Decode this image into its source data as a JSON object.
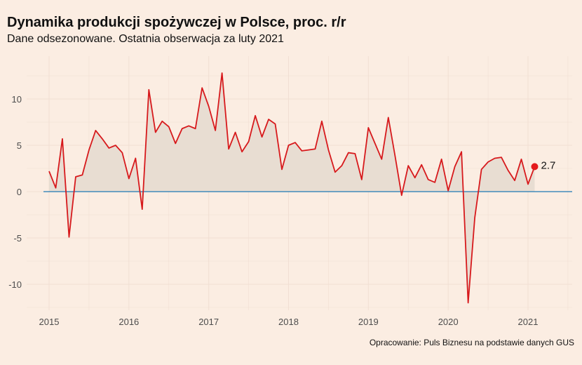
{
  "title": "Dynamika produkcji spożywczej w Polsce, proc. r/r",
  "subtitle": "Dane odsezonowane. Ostatnia obserwacja za luty 2021",
  "caption": "Opracowanie: Puls Biznesu na podstawie danych GUS",
  "chart_data": {
    "type": "area",
    "title": "Dynamika produkcji spożywczej w Polsce, proc. r/r",
    "subtitle": "Dane odsezonowane. Ostatnia obserwacja za luty 2021",
    "xlabel": "",
    "ylabel": "",
    "x_ticks": [
      "2015",
      "2016",
      "2017",
      "2018",
      "2019",
      "2020",
      "2021"
    ],
    "y_ticks": [
      10,
      5,
      0,
      -5,
      -10
    ],
    "xlim": [
      "2014-12",
      "2021-08"
    ],
    "ylim": [
      -12.5,
      13.5
    ],
    "grid": true,
    "legend": "none",
    "line_color": "#d7191c",
    "fill_color": "#e8ddd2",
    "zero_line_color": "#1f78b4",
    "last_value_label": "2.7",
    "series": [
      {
        "x": [
          "2015-01",
          "2015-02",
          "2015-03",
          "2015-04",
          "2015-05",
          "2015-06",
          "2015-07",
          "2015-08",
          "2015-09",
          "2015-10",
          "2015-11",
          "2015-12",
          "2016-01",
          "2016-02",
          "2016-03",
          "2016-04",
          "2016-05",
          "2016-06",
          "2016-07",
          "2016-08",
          "2016-09",
          "2016-10",
          "2016-11",
          "2016-12",
          "2017-01",
          "2017-02",
          "2017-03",
          "2017-04",
          "2017-05",
          "2017-06",
          "2017-07",
          "2017-08",
          "2017-09",
          "2017-10",
          "2017-11",
          "2017-12",
          "2018-01",
          "2018-02",
          "2018-03",
          "2018-04",
          "2018-05",
          "2018-06",
          "2018-07",
          "2018-08",
          "2018-09",
          "2018-10",
          "2018-11",
          "2018-12",
          "2019-01",
          "2019-02",
          "2019-03",
          "2019-04",
          "2019-05",
          "2019-06",
          "2019-07",
          "2019-08",
          "2019-09",
          "2019-10",
          "2019-11",
          "2019-12",
          "2020-01",
          "2020-02",
          "2020-03",
          "2020-04",
          "2020-05",
          "2020-06",
          "2020-07",
          "2020-08",
          "2020-09",
          "2020-10",
          "2020-11",
          "2020-12",
          "2021-01",
          "2021-02"
        ],
        "values": [
          2.2,
          0.4,
          5.7,
          -4.9,
          1.6,
          1.8,
          4.5,
          6.6,
          5.7,
          4.7,
          5.0,
          4.2,
          1.4,
          3.6,
          -1.9,
          11.0,
          6.4,
          7.6,
          7.0,
          5.2,
          6.8,
          7.1,
          6.8,
          11.2,
          9.2,
          6.6,
          12.8,
          4.6,
          6.4,
          4.3,
          5.4,
          8.2,
          5.9,
          7.8,
          7.3,
          2.4,
          5.0,
          5.3,
          4.4,
          4.5,
          4.6,
          7.6,
          4.5,
          2.1,
          2.8,
          4.2,
          4.1,
          1.3,
          6.9,
          5.2,
          3.5,
          8.0,
          3.9,
          -0.4,
          2.8,
          1.5,
          2.9,
          1.3,
          1.0,
          3.5,
          0.1,
          2.7,
          4.3,
          -12.0,
          -2.8,
          2.4,
          3.2,
          3.6,
          3.7,
          2.3,
          1.2,
          3.5,
          0.8,
          2.7
        ]
      }
    ]
  }
}
